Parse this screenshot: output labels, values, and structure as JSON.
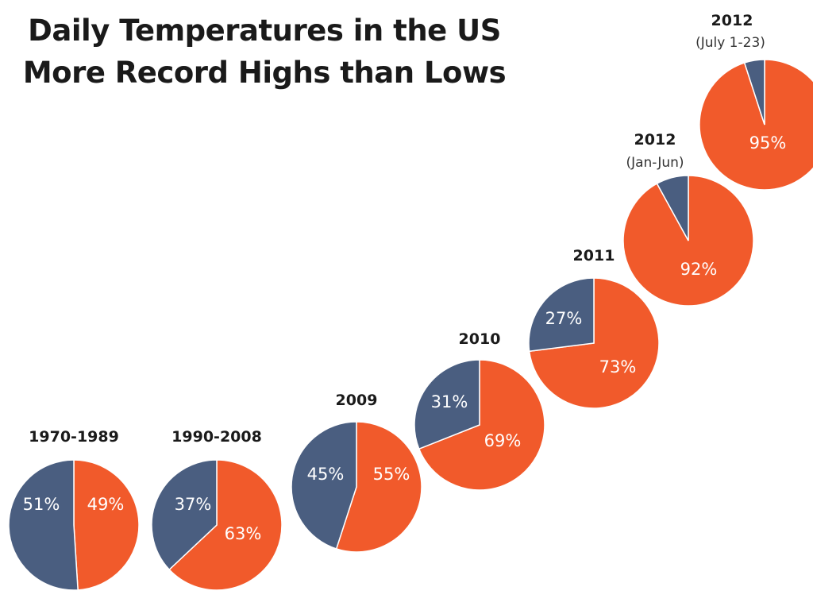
{
  "chart_data": {
    "type": "pie",
    "title": [
      "Daily Temperatures in the US",
      "More Record Highs than Lows"
    ],
    "colors": {
      "highs": "#f15a2b",
      "lows": "#4a5e80"
    },
    "pies": [
      {
        "label": "1970-1989",
        "sublabel": "",
        "highs": 49,
        "lows": 51,
        "highs_label": "49%",
        "lows_label": "51%"
      },
      {
        "label": "1990-2008",
        "sublabel": "",
        "highs": 63,
        "lows": 37,
        "highs_label": "63%",
        "lows_label": "37%"
      },
      {
        "label": "2009",
        "sublabel": "",
        "highs": 55,
        "lows": 45,
        "highs_label": "55%",
        "lows_label": "45%"
      },
      {
        "label": "2010",
        "sublabel": "",
        "highs": 69,
        "lows": 31,
        "highs_label": "69%",
        "lows_label": "31%"
      },
      {
        "label": "2011",
        "sublabel": "",
        "highs": 73,
        "lows": 27,
        "highs_label": "73%",
        "lows_label": "27%"
      },
      {
        "label": "2012",
        "sublabel": "(Jan-Jun)",
        "highs": 92,
        "lows": 8,
        "highs_label": "92%",
        "lows_label": ""
      },
      {
        "label": "2012",
        "sublabel": "(July 1-23)",
        "highs": 95,
        "lows": 5,
        "highs_label": "95%",
        "lows_label": ""
      }
    ]
  }
}
